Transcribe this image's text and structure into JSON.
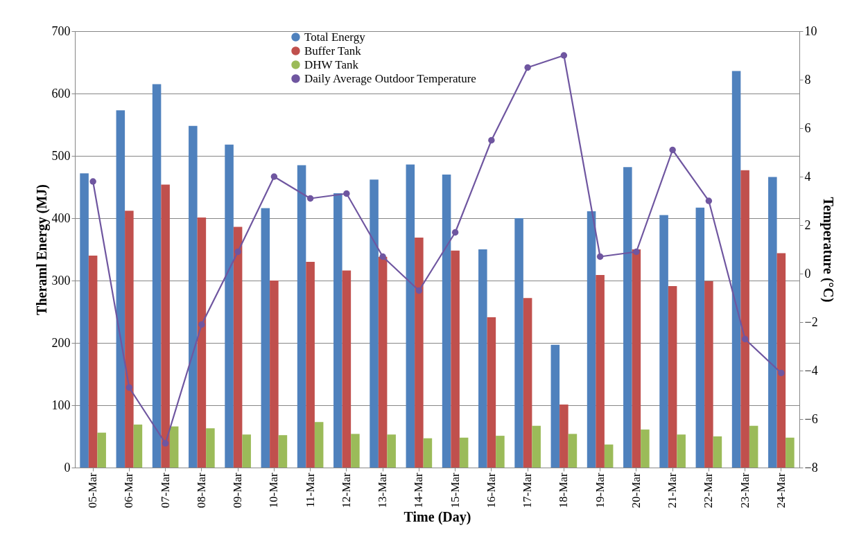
{
  "chart_data": {
    "type": "bar",
    "xlabel": "Time (Day)",
    "ylabel": "Theraml Energy (MJ)",
    "y2label": "Temperature (°C)",
    "categories": [
      "05-Mar",
      "06-Mar",
      "07-Mar",
      "08-Mar",
      "09-Mar",
      "10-Mar",
      "11-Mar",
      "12-Mar",
      "13-Mar",
      "14-Mar",
      "15-Mar",
      "16-Mar",
      "17-Mar",
      "18-Mar",
      "19-Mar",
      "20-Mar",
      "21-Mar",
      "22-Mar",
      "23-Mar",
      "24-Mar"
    ],
    "series": [
      {
        "name": "Total Energy",
        "color": "#4f81bd",
        "values": [
          472,
          573,
          615,
          548,
          518,
          416,
          485,
          440,
          462,
          486,
          470,
          350,
          400,
          197,
          411,
          482,
          405,
          417,
          636,
          466
        ]
      },
      {
        "name": "Buffer Tank",
        "color": "#c0504d",
        "values": [
          340,
          412,
          454,
          401,
          386,
          300,
          330,
          316,
          338,
          369,
          348,
          241,
          272,
          101,
          309,
          350,
          291,
          299,
          477,
          344
        ]
      },
      {
        "name": "DHW Tank",
        "color": "#9bbb59",
        "values": [
          56,
          69,
          66,
          63,
          53,
          52,
          73,
          54,
          53,
          47,
          48,
          51,
          67,
          54,
          37,
          61,
          53,
          50,
          67,
          48
        ]
      },
      {
        "name": "Daily Average Outdoor Temperature",
        "type": "line",
        "axis": "y2",
        "color": "#6f56a0",
        "values": [
          3.8,
          -4.7,
          -7.0,
          -2.1,
          0.9,
          4.0,
          3.1,
          3.3,
          0.7,
          -0.7,
          1.7,
          5.5,
          8.5,
          9.0,
          0.7,
          0.9,
          5.1,
          3.0,
          -2.7,
          -4.1
        ]
      }
    ],
    "ylim": [
      0,
      700
    ],
    "yticks": [
      0,
      100,
      200,
      300,
      400,
      500,
      600,
      700
    ],
    "y2lim": [
      -8,
      10
    ],
    "y2ticks": [
      -8,
      -6,
      -4,
      -2,
      0,
      2,
      4,
      6,
      8,
      10
    ],
    "grid": "y",
    "legend": "top left",
    "marker": "circle"
  }
}
